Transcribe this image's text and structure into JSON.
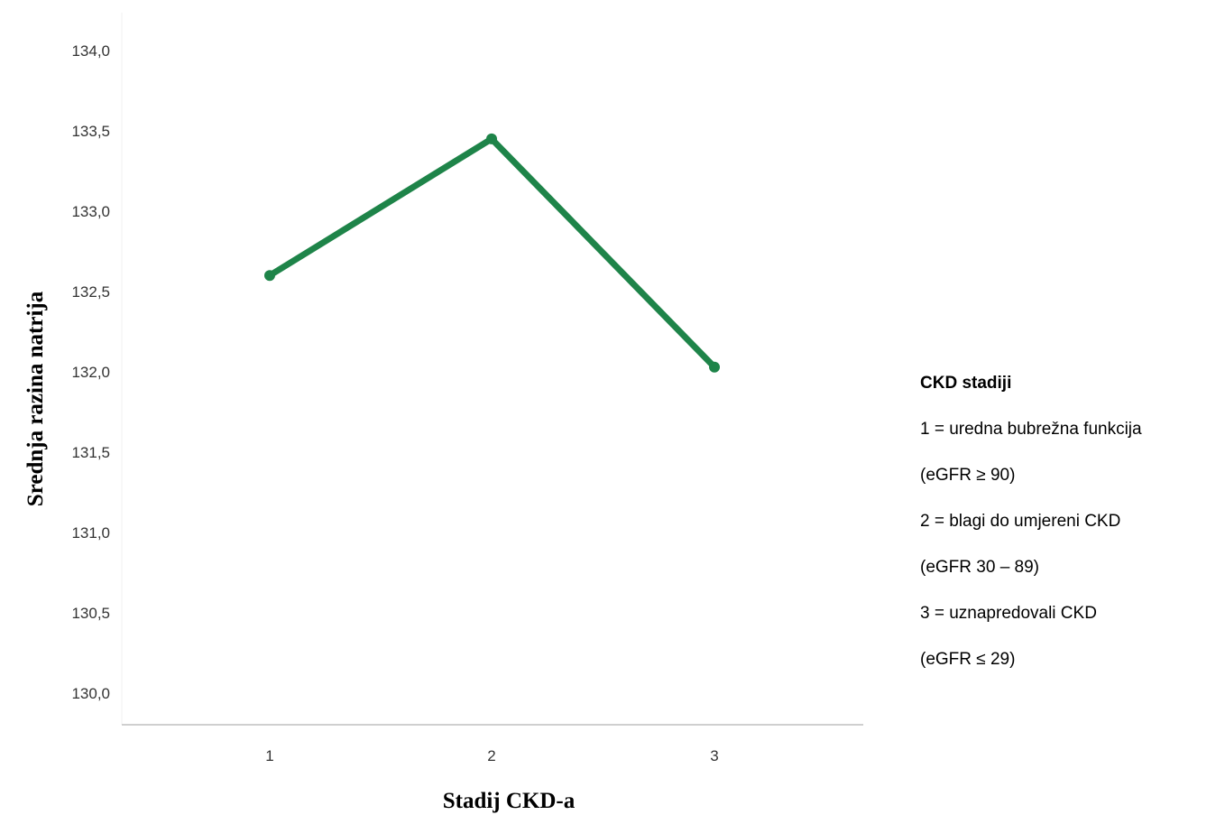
{
  "chart_data": {
    "type": "line",
    "x": [
      "1",
      "2",
      "3"
    ],
    "values": [
      132.6,
      133.45,
      132.03
    ],
    "xlabel": "Stadij CKD-a",
    "ylabel": "Srednja razina natrija",
    "ylim": [
      130.0,
      134.0
    ],
    "yticks": [
      "130,0",
      "130,5",
      "131,0",
      "131,5",
      "132,0",
      "132,5",
      "133,0",
      "133,5",
      "134,0"
    ],
    "grid": false,
    "line_color": "#1e8449"
  },
  "legend": {
    "title": "CKD stadiji",
    "lines": [
      "1 = uredna bubrežna funkcija",
      "(eGFR ≥ 90)",
      "2 = blagi do umjereni CKD",
      "(eGFR 30 – 89)",
      "3 = uznapredovali CKD",
      "(eGFR ≤ 29)"
    ]
  }
}
